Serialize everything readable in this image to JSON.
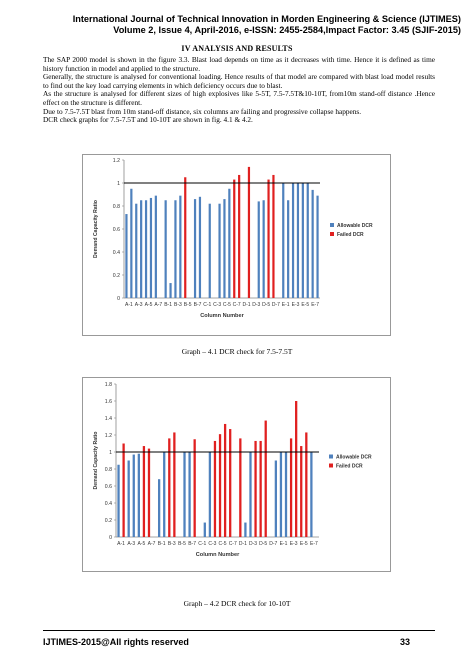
{
  "header": {
    "line1": "International Journal of Technical Innovation in Morden Engineering & Science (IJTIMES)",
    "line2": "Volume 2, Issue 4, April-2016, e-ISSN: 2455-2584,Impact Factor: 3.45 (SJIF-2015)"
  },
  "section_title": "IV ANALYSIS AND RESULTS",
  "paragraphs": [
    "The SAP 2000 model is shown in the figure 3.3. Blast load depends on time as it decreases with time. Hence it is defined as time history function in model and applied to the structure.",
    "Generally, the structure is analysed for conventional loading. Hence results of that model are compared with blast load model results to find out the key load carrying elements in which deficiency occurs due to blast.",
    "As the structure is analysed for different sizes of high explosives like 5-5T, 7.5-7.5T&10-10T, from10m stand-off distance .Hence effect on the structure is different.",
    "Due to 7.5-7.5T blast from 10m stand-off distance, six columns are failing and progressive collapse happens.",
    "DCR check graphs for 7.5-7.5T and 10-10T are shown in fig. 4.1 & 4.2."
  ],
  "captions": {
    "fig1": "Graph – 4.1   DCR check for 7.5-7.5T",
    "fig2": "Graph – 4.2   DCR check for 10-10T"
  },
  "footer": {
    "left": "IJTIMES-2015@All rights reserved",
    "page": "33"
  },
  "colors": {
    "allowable": "#4f81bd",
    "failed": "#e02020"
  },
  "chart_data": [
    {
      "type": "bar",
      "title": "",
      "xlabel": "Column Number",
      "ylabel": "Demand Capacity Ratio",
      "ylim": [
        0,
        1.2
      ],
      "yticks": [
        0,
        0.2,
        0.4,
        0.6,
        0.8,
        1,
        1.2
      ],
      "reference_line": 1,
      "grid": false,
      "legend": "right",
      "x_tick_labels": [
        "A-1",
        "A-3",
        "A-5",
        "A-7",
        "B-1",
        "B-3",
        "B-5",
        "B-7",
        "C-1",
        "C-3",
        "C-5",
        "C-7",
        "D-1",
        "D-3",
        "D-5",
        "D-7",
        "E-1",
        "E-3",
        "E-5",
        "E-7"
      ],
      "series": [
        {
          "name": "Allowable DCR"
        },
        {
          "name": "Failed DCR"
        }
      ],
      "values": [
        0.73,
        0.95,
        0.82,
        0.85,
        0.85,
        0.87,
        0.89,
        0,
        0.85,
        0.13,
        0.85,
        0.89,
        1.05,
        0,
        0.86,
        0.88,
        0,
        0.82,
        0,
        0.82,
        0.86,
        0.95,
        1.03,
        1.07,
        0,
        1.14,
        0,
        0.84,
        0.85,
        1.03,
        1.07,
        0,
        1.0,
        0.85,
        1.0,
        1.0,
        1.0,
        1.0,
        0.94,
        0.89
      ],
      "failed": [
        false,
        false,
        false,
        false,
        false,
        false,
        false,
        false,
        false,
        false,
        false,
        false,
        true,
        false,
        false,
        false,
        false,
        false,
        false,
        false,
        false,
        false,
        true,
        true,
        false,
        true,
        false,
        false,
        false,
        true,
        true,
        false,
        false,
        false,
        false,
        false,
        false,
        false,
        false,
        false
      ]
    },
    {
      "type": "bar",
      "title": "",
      "xlabel": "Column Number",
      "ylabel": "Demand Capacity Ratio",
      "ylim": [
        0,
        1.8
      ],
      "yticks": [
        0,
        0.2,
        0.4,
        0.6,
        0.8,
        1,
        1.2,
        1.4,
        1.6,
        1.8
      ],
      "reference_line": 1,
      "grid": false,
      "legend": "right",
      "x_tick_labels": [
        "A-1",
        "A-3",
        "A-5",
        "A-7",
        "B-1",
        "B-3",
        "B-5",
        "B-7",
        "C-1",
        "C-3",
        "C-5",
        "C-7",
        "D-1",
        "D-3",
        "D-5",
        "D-7",
        "E-1",
        "E-3",
        "E-5",
        "E-7"
      ],
      "series": [
        {
          "name": "Allowable DCR"
        },
        {
          "name": "Failed DCR"
        }
      ],
      "values": [
        0.85,
        1.1,
        0.9,
        0.97,
        0.98,
        1.07,
        1.04,
        0,
        0.68,
        1.0,
        1.16,
        1.23,
        0,
        1.0,
        1.0,
        1.15,
        0,
        0.17,
        1.0,
        1.13,
        1.21,
        1.33,
        1.27,
        0,
        1.16,
        0.17,
        1.0,
        1.13,
        1.13,
        1.37,
        0,
        0.9,
        1.0,
        1.0,
        1.16,
        1.6,
        1.07,
        1.23,
        1.0,
        0
      ],
      "failed": [
        false,
        true,
        false,
        false,
        false,
        true,
        true,
        false,
        false,
        false,
        true,
        true,
        false,
        false,
        false,
        true,
        false,
        false,
        false,
        true,
        true,
        true,
        true,
        false,
        true,
        false,
        false,
        true,
        true,
        true,
        false,
        false,
        false,
        false,
        true,
        true,
        true,
        true,
        false,
        false
      ]
    }
  ]
}
